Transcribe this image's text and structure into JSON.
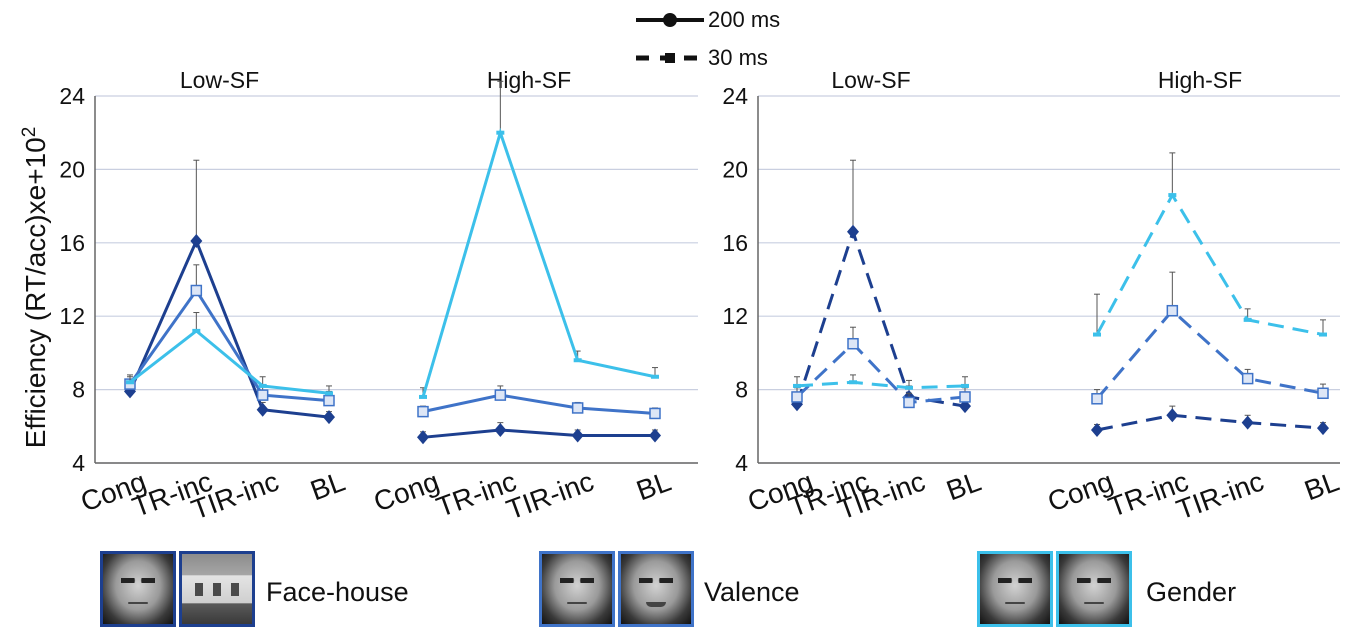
{
  "legend": {
    "solid_label": "200 ms",
    "dashed_label": "30 ms"
  },
  "colors": {
    "face_house": "#1d3f8f",
    "valence": "#3f73c8",
    "gender": "#3cc0ea",
    "grid": "#c9cfe0",
    "axis": "#666666"
  },
  "stimuli": {
    "face_house": "Face-house",
    "valence": "Valence",
    "gender": "Gender"
  },
  "chart_data": [
    {
      "type": "line",
      "line_style": "solid",
      "panels": [
        "Low-SF",
        "High-SF"
      ],
      "categories": [
        "Cong",
        "TR-inc",
        "TIR-inc",
        "BL"
      ],
      "ylabel": "Efficiency (RT/acc)xe+10",
      "ylabel_superscript": "2",
      "ylim": [
        4,
        24
      ],
      "yticks": [
        4,
        8,
        12,
        16,
        20,
        24
      ],
      "grid": true,
      "series": [
        {
          "stimulus": "face_house",
          "marker": "diamond",
          "low_sf": [
            7.9,
            16.1,
            6.9,
            6.5
          ],
          "low_sf_err": [
            0.5,
            4.4,
            0.4,
            0.3
          ],
          "high_sf": [
            5.4,
            5.8,
            5.5,
            5.5
          ],
          "high_sf_err": [
            0.3,
            0.4,
            0.3,
            0.3
          ]
        },
        {
          "stimulus": "valence",
          "marker": "square",
          "low_sf": [
            8.3,
            13.4,
            7.7,
            7.4
          ],
          "low_sf_err": [
            0.4,
            1.4,
            0.5,
            0.5
          ],
          "high_sf": [
            6.8,
            7.7,
            7.0,
            6.7
          ],
          "high_sf_err": [
            0.3,
            0.5,
            0.3,
            0.3
          ]
        },
        {
          "stimulus": "gender",
          "marker": "dash",
          "low_sf": [
            8.4,
            11.2,
            8.2,
            7.8
          ],
          "low_sf_err": [
            0.4,
            1.0,
            0.5,
            0.4
          ],
          "high_sf": [
            7.6,
            22.0,
            9.6,
            8.7
          ],
          "high_sf_err": [
            0.5,
            2.8,
            0.5,
            0.5
          ]
        }
      ]
    },
    {
      "type": "line",
      "line_style": "dashed",
      "panels": [
        "Low-SF",
        "High-SF"
      ],
      "categories": [
        "Cong",
        "TR-inc",
        "TIR-inc",
        "BL"
      ],
      "ylim": [
        4,
        24
      ],
      "yticks": [
        4,
        8,
        12,
        16,
        20,
        24
      ],
      "grid": true,
      "series": [
        {
          "stimulus": "face_house",
          "marker": "diamond",
          "low_sf": [
            7.2,
            16.6,
            7.6,
            7.1
          ],
          "low_sf_err": [
            0.6,
            3.9,
            0.6,
            0.5
          ],
          "high_sf": [
            5.8,
            6.6,
            6.2,
            5.9
          ],
          "high_sf_err": [
            0.3,
            0.5,
            0.4,
            0.3
          ]
        },
        {
          "stimulus": "valence",
          "marker": "square",
          "low_sf": [
            7.6,
            10.5,
            7.3,
            7.6
          ],
          "low_sf_err": [
            0.5,
            0.9,
            0.5,
            0.5
          ],
          "high_sf": [
            7.5,
            12.3,
            8.6,
            7.8
          ],
          "high_sf_err": [
            0.5,
            2.1,
            0.5,
            0.5
          ]
        },
        {
          "stimulus": "gender",
          "marker": "dash",
          "low_sf": [
            8.2,
            8.4,
            8.1,
            8.2
          ],
          "low_sf_err": [
            0.5,
            0.4,
            0.4,
            0.5
          ],
          "high_sf": [
            11.0,
            18.6,
            11.8,
            11.0
          ],
          "high_sf_err": [
            2.2,
            2.3,
            0.6,
            0.8
          ]
        }
      ]
    }
  ]
}
